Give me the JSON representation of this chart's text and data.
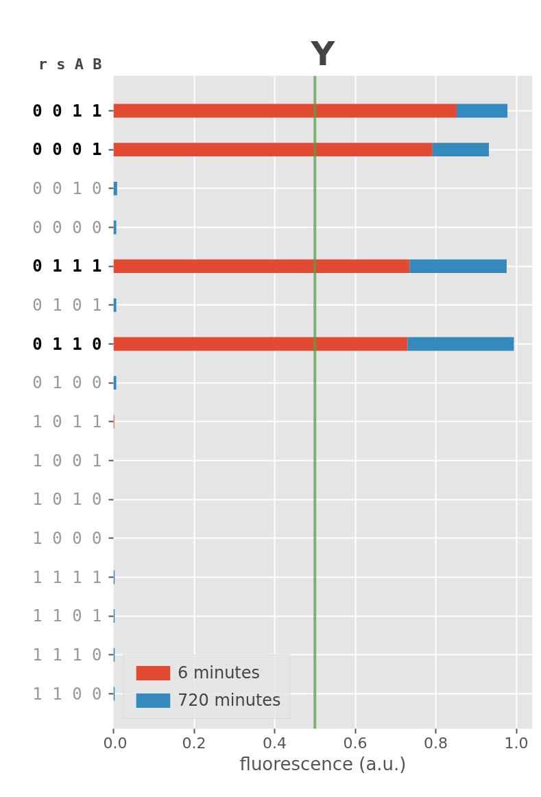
{
  "chart_data": {
    "type": "bar",
    "orientation": "horizontal",
    "stacked": true,
    "title": "Y",
    "ylabel": "r s A B",
    "xlabel": "fluorescence (a.u.)",
    "categories": [
      "0 0 1 1",
      "0 0 0 1",
      "0 0 1 0",
      "0 0 0 0",
      "0 1 1 1",
      "0 1 0 1",
      "0 1 1 0",
      "0 1 0 0",
      "1 0 1 1",
      "1 0 0 1",
      "1 0 1 0",
      "1 0 0 0",
      "1 1 1 1",
      "1 1 0 1",
      "1 1 1 0",
      "1 1 0 0"
    ],
    "series": [
      {
        "name": "6 minutes",
        "color": "#e24a33",
        "values": [
          0.852,
          0.792,
          0,
          0,
          0.735,
          0,
          0.73,
          0,
          0.002,
          0,
          0,
          0,
          0,
          0,
          0,
          0
        ]
      },
      {
        "name": "720 minutes",
        "color": "#348abd",
        "values": [
          0.126,
          0.14,
          0.009,
          0.007,
          0.241,
          0.007,
          0.264,
          0.007,
          0,
          0,
          0,
          0,
          0.003,
          0.003,
          0.003,
          0.003
        ]
      }
    ],
    "xlim": [
      0,
      1.04
    ],
    "xticks": [
      {
        "value": 0,
        "label": "0.0"
      },
      {
        "value": 0.2,
        "label": "0.2"
      },
      {
        "value": 0.4,
        "label": "0.4"
      },
      {
        "value": 0.6,
        "label": "0.6"
      },
      {
        "value": 0.8,
        "label": "0.8"
      },
      {
        "value": 1,
        "label": "1.0"
      }
    ],
    "ref_lines": [
      {
        "axis": "x",
        "value": 0.5,
        "color": "#5a9e4b"
      }
    ],
    "grid": true,
    "legend": "bottom left"
  }
}
